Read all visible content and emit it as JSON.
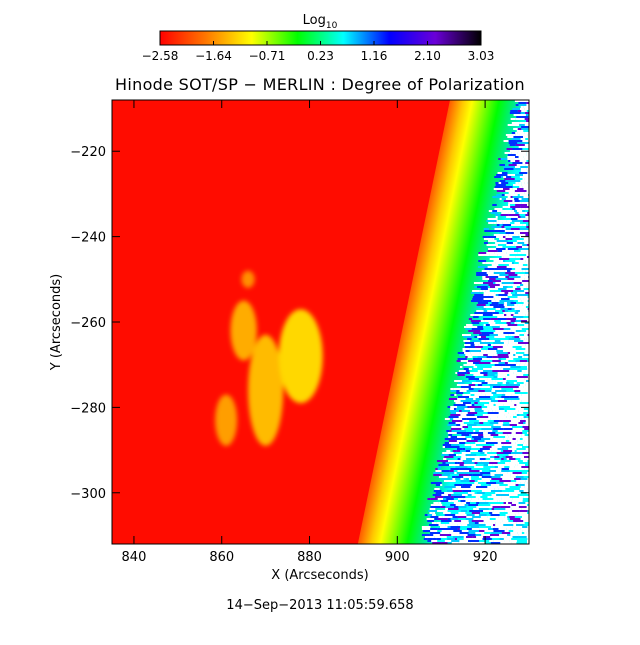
{
  "colorbar": {
    "title": "Log",
    "title_subscript": "10",
    "tick_labels": [
      "−2.58",
      "−1.64",
      "−0.71",
      "0.23",
      "1.16",
      "2.10",
      "3.03"
    ],
    "range": [
      -2.58,
      3.03
    ],
    "stops": [
      "#ff0000",
      "#ff7700",
      "#ffff00",
      "#00ff00",
      "#00ffff",
      "#0000ff",
      "#6a00d8",
      "#000000"
    ]
  },
  "chart_data": {
    "type": "heatmap",
    "title": "Hinode SOT/SP − MERLIN : Degree of Polarization",
    "xlabel": "X (Arcseconds)",
    "ylabel": "Y (Arcseconds)",
    "xlim": [
      835,
      930
    ],
    "ylim": [
      -312,
      -208
    ],
    "x_ticks": [
      840,
      860,
      880,
      900,
      920
    ],
    "y_ticks": [
      -220,
      -240,
      -260,
      -280,
      -300
    ],
    "background_log10": -2.5,
    "limb_profile": [
      {
        "offset_arcsec": 0,
        "log10": -2.2,
        "color": "#ff5a00"
      },
      {
        "offset_arcsec": 3,
        "log10": -1.3,
        "color": "#ffc800"
      },
      {
        "offset_arcsec": 5,
        "log10": -0.9,
        "color": "#ffff00"
      },
      {
        "offset_arcsec": 8,
        "log10": -0.3,
        "color": "#80ff00"
      },
      {
        "offset_arcsec": 11,
        "log10": 0.1,
        "color": "#00ff00"
      },
      {
        "offset_arcsec": 15,
        "log10": 0.6,
        "color": "#00e8a0"
      },
      {
        "offset_arcsec": 18,
        "log10": 0.9,
        "color": "#00ffff"
      }
    ],
    "limb_inner_edge": [
      {
        "y": -208,
        "x": 912
      },
      {
        "y": -312,
        "x": 891
      }
    ],
    "active_regions": [
      {
        "x": 878,
        "y": -268,
        "rx": 5,
        "ry": 11,
        "log10": -1.0
      },
      {
        "x": 870,
        "y": -276,
        "rx": 4,
        "ry": 13,
        "log10": -1.2
      },
      {
        "x": 865,
        "y": -262,
        "rx": 3,
        "ry": 7,
        "log10": -1.3
      },
      {
        "x": 861,
        "y": -283,
        "rx": 2.5,
        "ry": 6,
        "log10": -1.4
      },
      {
        "x": 866,
        "y": -250,
        "rx": 1.5,
        "ry": 2,
        "log10": -1.5
      }
    ]
  },
  "timestamp": "14−Sep−2013 11:05:59.658"
}
